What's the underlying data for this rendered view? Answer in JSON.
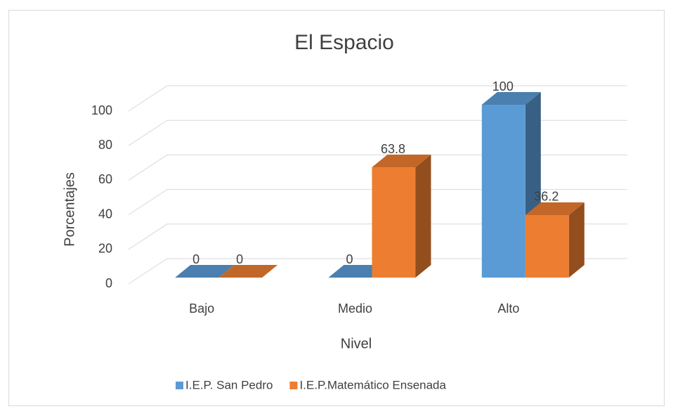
{
  "chart_data": {
    "type": "bar3d",
    "title": "El Espacio",
    "x_label": "Nivel",
    "y_label": "Porcentajes",
    "categories": [
      "Bajo",
      "Medio",
      "Alto"
    ],
    "series": [
      {
        "name": "I.E.P. San Pedro",
        "color": "#5b9bd5",
        "values": [
          0,
          0,
          100
        ]
      },
      {
        "name": "I.E.P.Matemático Ensenada",
        "color": "#ed7d31",
        "values": [
          0,
          63.8,
          36.2
        ]
      }
    ],
    "ylim": [
      0,
      100
    ],
    "yticks": [
      0,
      20,
      40,
      60,
      80,
      100
    ],
    "grid": true,
    "legend": "bottom"
  }
}
